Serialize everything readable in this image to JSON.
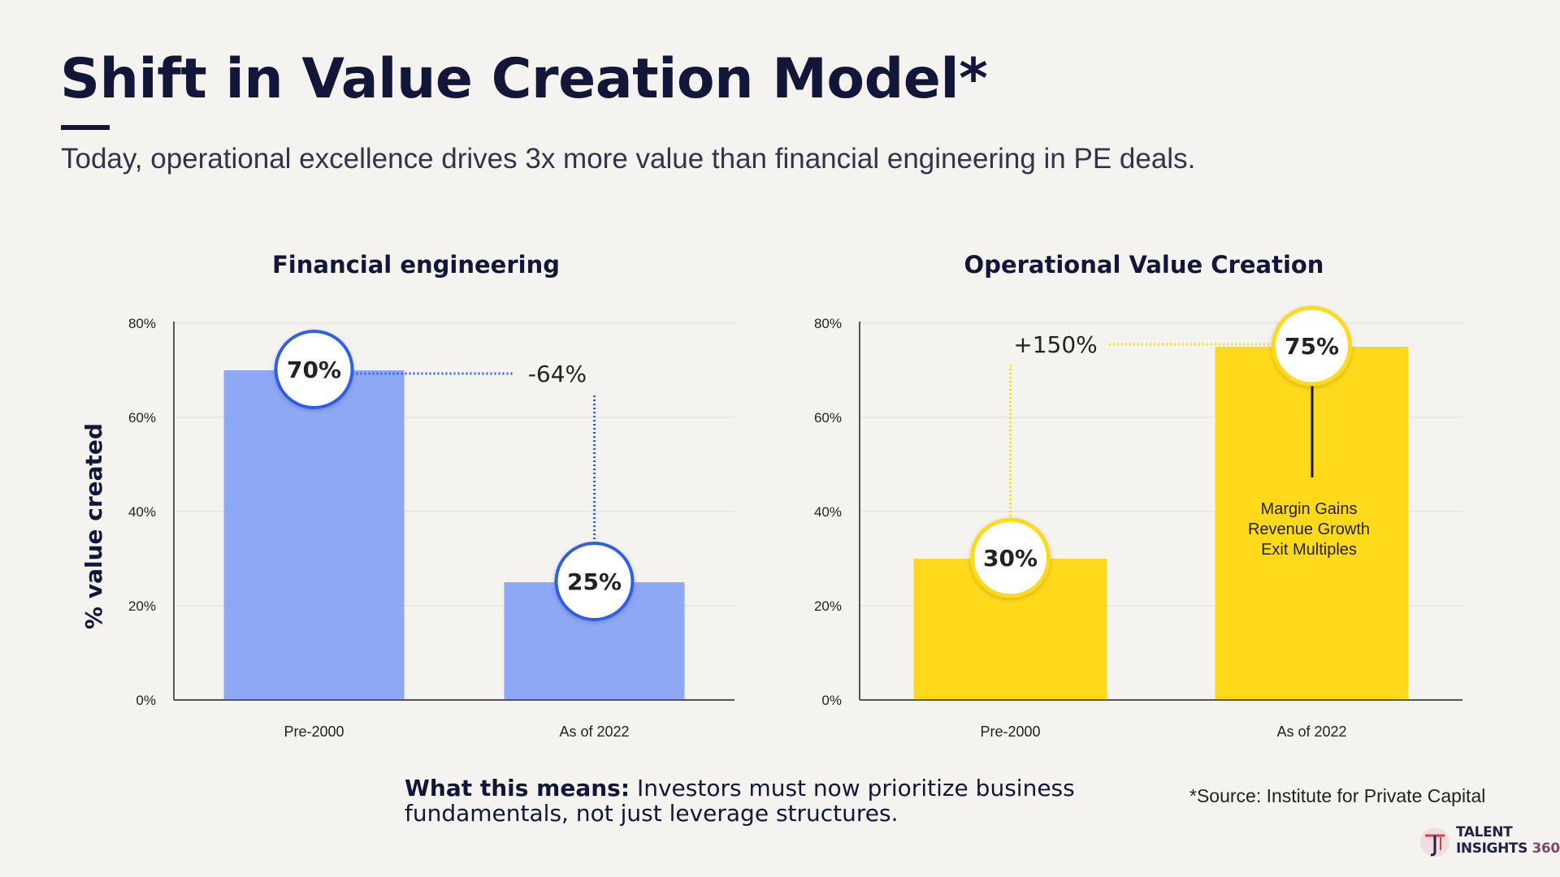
{
  "header": {
    "title": "Shift in Value Creation Model*",
    "subtitle": "Today, operational excellence drives 3x more value than financial engineering in PE deals."
  },
  "chart_data": [
    {
      "type": "bar",
      "title": "Financial engineering",
      "ylabel": "% value created",
      "categories": [
        "Pre-2000",
        "As of 2022"
      ],
      "values": [
        70,
        25
      ],
      "value_labels": [
        "70%",
        "25%"
      ],
      "ylim": [
        0,
        80
      ],
      "yticks": [
        0,
        20,
        40,
        60,
        80
      ],
      "ytick_labels": [
        "0%",
        "20%",
        "40%",
        "60%",
        "80%"
      ],
      "grid": true,
      "change_label": "-64%",
      "bar_color": "#8fa8f5",
      "accent_color": "#2f5fe6"
    },
    {
      "type": "bar",
      "title": "Operational Value Creation",
      "ylabel": "",
      "categories": [
        "Pre-2000",
        "As of 2022"
      ],
      "values": [
        30,
        75
      ],
      "value_labels": [
        "30%",
        "75%"
      ],
      "ylim": [
        0,
        80
      ],
      "yticks": [
        0,
        20,
        40,
        60,
        80
      ],
      "ytick_labels": [
        "0%",
        "20%",
        "40%",
        "60%",
        "80%"
      ],
      "grid": true,
      "change_label": "+150%",
      "bar_color": "#ffd91a",
      "accent_color": "#ffd91a",
      "annotation_lines": [
        "Margin Gains",
        "Revenue Growth",
        "Exit Multiples"
      ]
    }
  ],
  "footer": {
    "takeaway_label": "What this means:",
    "takeaway_text": " Investors must now prioritize business fundamentals, not just leverage structures.",
    "source": "*Source: Institute for Private Capital"
  },
  "logo": {
    "line1": "TALENT",
    "line2_word": "INSIGHTS",
    "line2_num": "360"
  }
}
